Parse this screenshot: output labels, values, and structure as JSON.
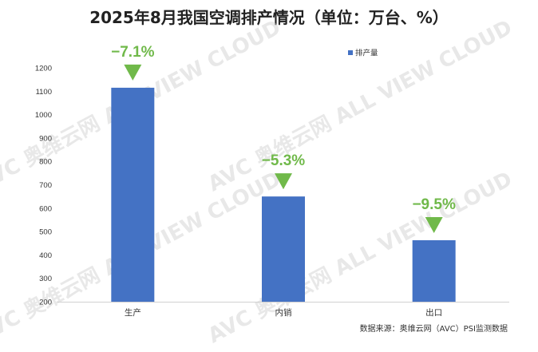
{
  "chart_data": {
    "type": "bar",
    "title": "2025年8月我国空调排产情况（单位：万台、%）",
    "categories": [
      "生产",
      "内销",
      "出口"
    ],
    "series": [
      {
        "name": "排产量",
        "values": [
          1115,
          650,
          463
        ],
        "color": "#4472C4"
      }
    ],
    "annotations": [
      "−7.1%",
      "−5.3%",
      "−9.5%"
    ],
    "annotation_color": "#70B94A",
    "yticks": [
      200,
      300,
      400,
      500,
      600,
      700,
      800,
      900,
      1000,
      1100,
      1200
    ],
    "ylim": [
      200,
      1250
    ],
    "grid": false,
    "legend_position": "top-right",
    "source_note": "数据来源：奥维云网（AVC）PSI监测数据",
    "watermark": "AVC 奥维云网 ALL VIEW CLOUD"
  }
}
